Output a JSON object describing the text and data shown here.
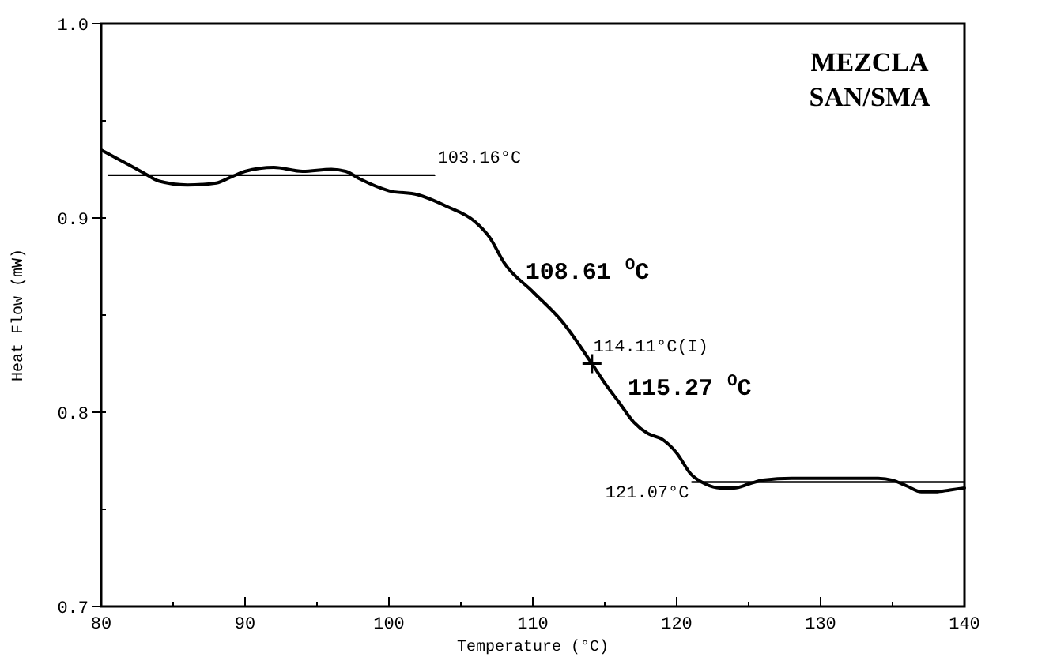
{
  "chart_data": {
    "type": "line",
    "title": "MEZCLA\nSAN/SMA",
    "xlabel": "Temperature (°C)",
    "ylabel": "Heat Flow (mW)",
    "xlim": [
      80,
      140
    ],
    "ylim": [
      0.7,
      1.0
    ],
    "xticks": [
      80,
      {
        "value": 85,
        "label": null
      },
      90,
      {
        "value": 95,
        "label": null
      },
      100,
      {
        "value": 105,
        "label": null
      },
      110,
      {
        "value": 115,
        "label": null
      },
      120,
      {
        "value": 125,
        "label": null
      },
      130,
      {
        "value": 135,
        "label": null
      },
      140
    ],
    "yticks": [
      0.7,
      {
        "value": 0.75,
        "label": null
      },
      0.8,
      {
        "value": 0.85,
        "label": null
      },
      0.9,
      {
        "value": 0.95,
        "label": null
      },
      {
        "value": 1.0,
        "label": "1.0"
      }
    ],
    "grid": false,
    "line_style": "solid",
    "series": [
      {
        "color": "#000000",
        "x": [
          80,
          81,
          83,
          84,
          86,
          88,
          89,
          90,
          92,
          94,
          96,
          97,
          98,
          100,
          102,
          104,
          106,
          107,
          108,
          110,
          112,
          114.11,
          115,
          116,
          117,
          118,
          119,
          120,
          121,
          122,
          123,
          124,
          125,
          126,
          128,
          130,
          132,
          134,
          135,
          136,
          137,
          138,
          139,
          140
        ],
        "values": [
          0.935,
          0.931,
          0.923,
          0.919,
          0.917,
          0.918,
          0.921,
          0.924,
          0.926,
          0.924,
          0.925,
          0.924,
          0.92,
          0.914,
          0.912,
          0.906,
          0.898,
          0.89,
          0.877,
          0.862,
          0.847,
          0.825,
          0.815,
          0.805,
          0.795,
          0.789,
          0.786,
          0.779,
          0.768,
          0.763,
          0.761,
          0.761,
          0.763,
          0.765,
          0.766,
          0.766,
          0.766,
          0.766,
          0.765,
          0.762,
          0.759,
          0.759,
          0.76,
          0.761
        ]
      },
      {
        "type": "line",
        "color": "#000000",
        "x": [
          80.5,
          103.16
        ],
        "values": [
          0.922,
          0.922
        ]
      },
      {
        "type": "line",
        "color": "#000000",
        "x": [
          121.07,
          140
        ],
        "values": [
          0.764,
          0.764
        ]
      }
    ],
    "annotations": [
      {
        "text": "103.16°C",
        "x": 103.16,
        "y": 0.922
      },
      {
        "text": "108.61 $^{O}$C",
        "x": 108.61,
        "y": 0.872
      },
      {
        "text": "114.11°C(I)",
        "x": 114.11,
        "y": 0.825
      },
      {
        "text": "115.27 $^{O}$C",
        "x": 115.27,
        "y": 0.812
      },
      {
        "text": "121.07°C",
        "x": 121.07,
        "y": 0.766
      }
    ]
  }
}
